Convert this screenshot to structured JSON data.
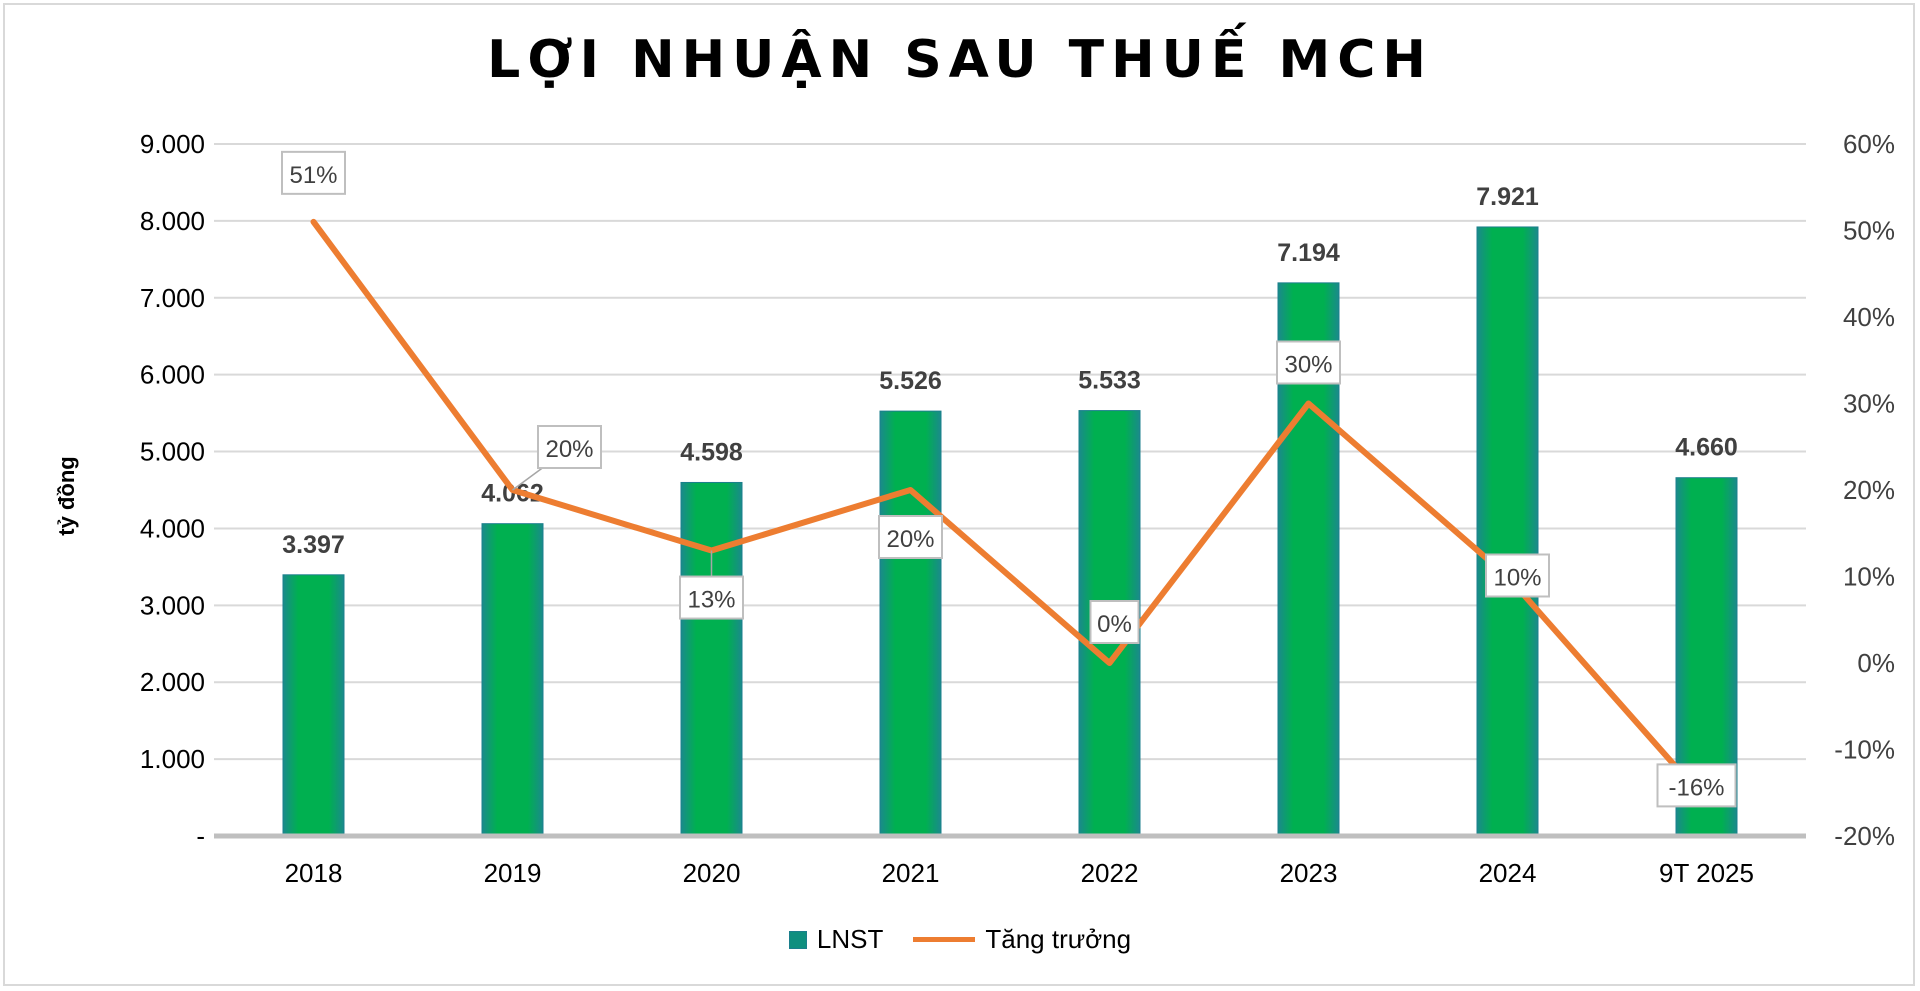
{
  "chart_data": {
    "type": "bar+line",
    "title": "LỢI NHUẬN SAU THUẾ MCH",
    "ylabel": "tỷ đồng",
    "categories": [
      "2018",
      "2019",
      "2020",
      "2021",
      "2022",
      "2023",
      "2024",
      "9T 2025"
    ],
    "series": [
      {
        "name": "LNST",
        "type": "bar",
        "axis": "left",
        "values": [
          3397,
          4062,
          4598,
          5526,
          5533,
          7194,
          7921,
          4660
        ],
        "labels": [
          "3.397",
          "4.062",
          "4.598",
          "5.526",
          "5.533",
          "7.194",
          "7.921",
          "4.660"
        ],
        "color": "#00B050"
      },
      {
        "name": "Tăng trưởng",
        "type": "line",
        "axis": "right",
        "values": [
          51,
          20,
          13,
          20,
          0,
          30,
          10,
          -16
        ],
        "labels": [
          "51%",
          "20%",
          "13%",
          "20%",
          "0%",
          "30%",
          "10%",
          "-16%"
        ],
        "color": "#ED7D31"
      }
    ],
    "left_axis": {
      "ylim": [
        0,
        9000
      ],
      "ticks": [
        0,
        1000,
        2000,
        3000,
        4000,
        5000,
        6000,
        7000,
        8000,
        9000
      ],
      "tick_labels": [
        "-",
        "1.000",
        "2.000",
        "3.000",
        "4.000",
        "5.000",
        "6.000",
        "7.000",
        "8.000",
        "9.000"
      ]
    },
    "right_axis": {
      "ylim": [
        -20,
        60
      ],
      "ticks": [
        -20,
        -10,
        0,
        10,
        20,
        30,
        40,
        50,
        60
      ],
      "tick_labels": [
        "-20%",
        "-10%",
        "0%",
        "10%",
        "20%",
        "30%",
        "40%",
        "50%",
        "60%"
      ]
    },
    "grid": true,
    "legend": "bottom"
  }
}
